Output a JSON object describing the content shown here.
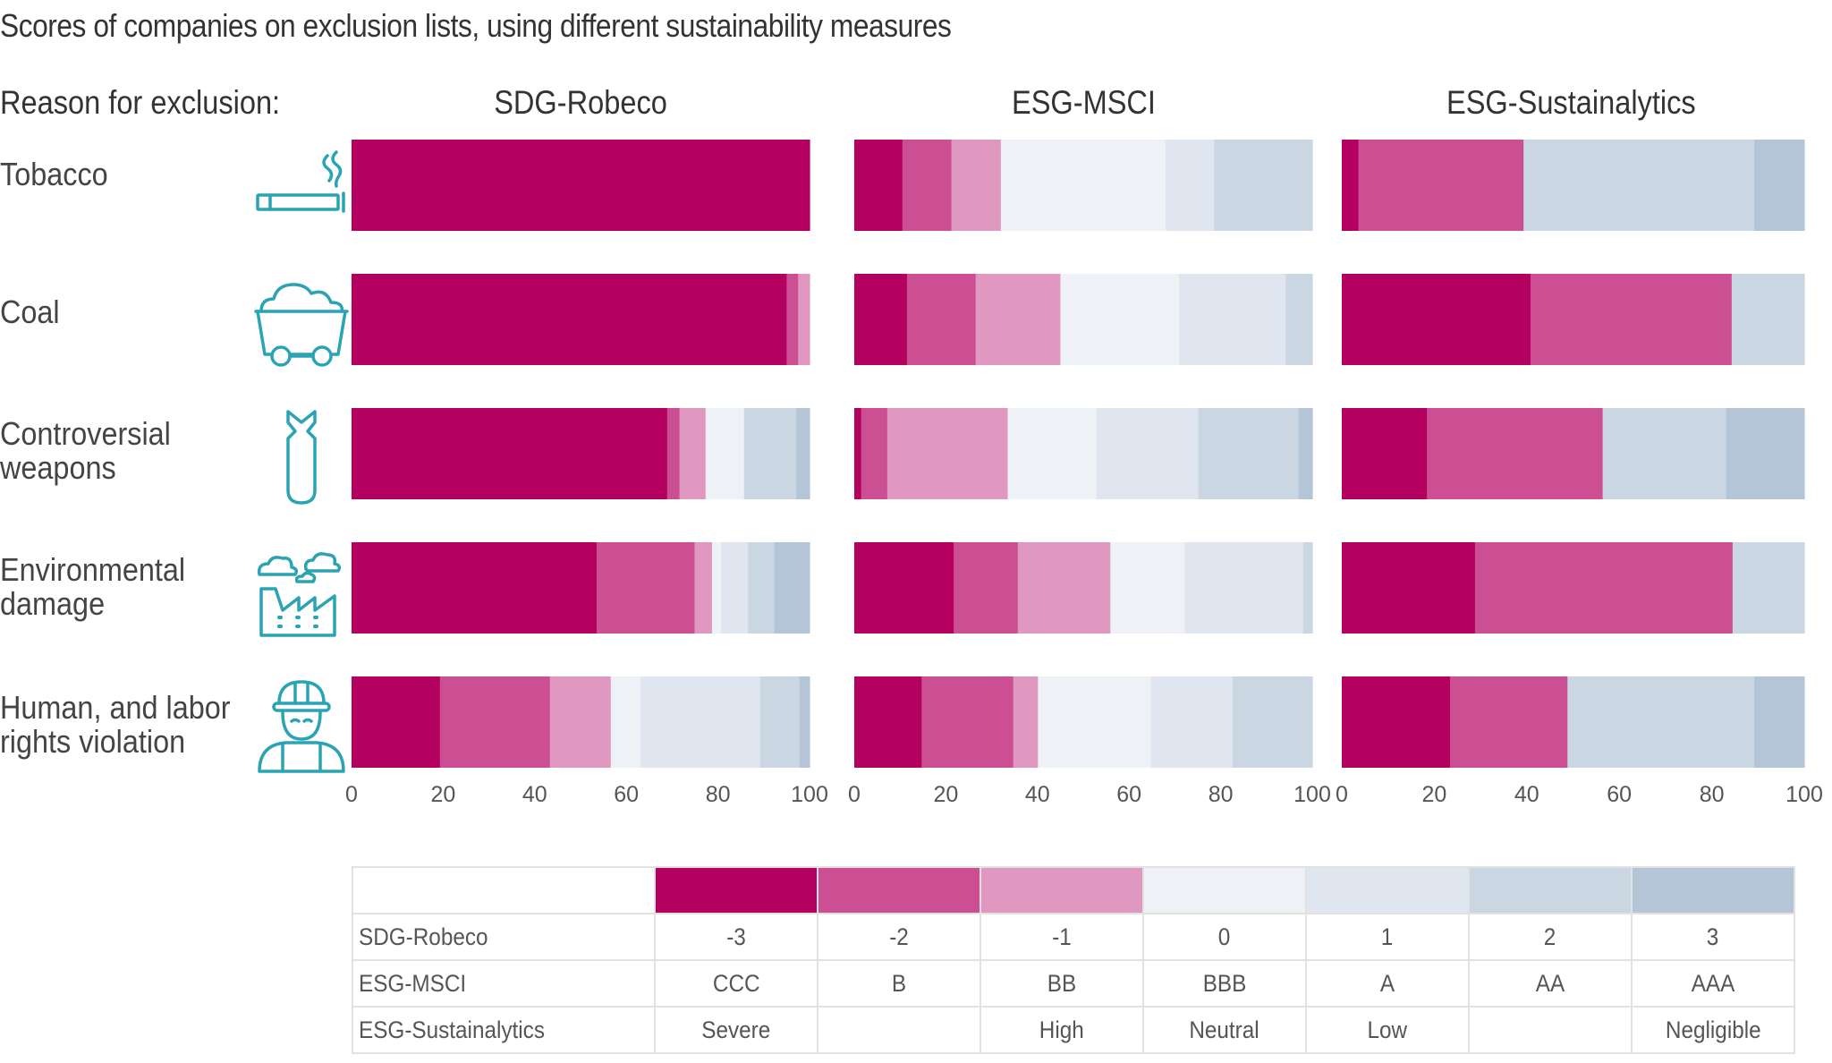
{
  "title": "Scores of companies on exclusion lists, using different sustainability measures",
  "reason_header": "Reason for exclusion:",
  "colors": {
    "m3": "#b4005f",
    "m2": "#cb4f92",
    "m1": "#e097c0",
    "z0": "#eef1f5",
    "p1": "#e0e6ef",
    "p2": "#cad6e2",
    "p3": "#b3c5d6",
    "icon": "#2aa3b3"
  },
  "rows": [
    {
      "label_lines": [
        "Tobacco"
      ],
      "icon": "cigarette-icon"
    },
    {
      "label_lines": [
        "Coal"
      ],
      "icon": "mine-cart-icon"
    },
    {
      "label_lines": [
        "Controversial",
        "weapons"
      ],
      "icon": "bomb-icon"
    },
    {
      "label_lines": [
        "Environmental",
        "damage"
      ],
      "icon": "factory-pollution-icon"
    },
    {
      "label_lines": [
        "Human, and labor",
        "rights violation"
      ],
      "icon": "worker-helmet-icon"
    }
  ],
  "legend": {
    "rows": [
      {
        "name": "SDG-Robeco",
        "values": [
          "-3",
          "-2",
          "-1",
          "0",
          "1",
          "2",
          "3"
        ]
      },
      {
        "name": "ESG-MSCI",
        "values": [
          "CCC",
          "B",
          "BB",
          "BBB",
          "A",
          "AA",
          "AAA"
        ]
      },
      {
        "name": "ESG-Sustainalytics",
        "values": [
          "Severe",
          "",
          "High",
          "Neutral",
          "Low",
          "",
          "Negligible"
        ]
      }
    ]
  },
  "chart_data": {
    "type": "bar",
    "orientation": "horizontal-stacked-100",
    "title": "Scores of companies on exclusion lists, using different sustainability measures",
    "categories": [
      "Tobacco",
      "Coal",
      "Controversial weapons",
      "Environmental damage",
      "Human, and labor rights violation"
    ],
    "score_levels": [
      -3,
      -2,
      -1,
      0,
      1,
      2,
      3
    ],
    "xlabel": "",
    "xlim": [
      0,
      100
    ],
    "xticks": [
      "0",
      "20",
      "40",
      "60",
      "80",
      "100"
    ],
    "grid": false,
    "legend_placement": "bottom (table)",
    "panels": [
      {
        "name": "SDG-Robeco",
        "series": [
          {
            "category": "Tobacco",
            "values": [
              100,
              0,
              0,
              0,
              0,
              0,
              0
            ]
          },
          {
            "category": "Coal",
            "values": [
              95,
              2.5,
              2.5,
              0,
              0,
              0,
              0
            ]
          },
          {
            "category": "Controversial weapons",
            "values": [
              68.9,
              2.7,
              5.7,
              8.4,
              0,
              11.4,
              2.9
            ]
          },
          {
            "category": "Environmental damage",
            "values": [
              53.5,
              21.4,
              3.8,
              2,
              5.9,
              5.7,
              7.7
            ]
          },
          {
            "category": "Human, and labor rights violation",
            "values": [
              19.3,
              24,
              13.3,
              6.5,
              26.1,
              8.6,
              2.2
            ]
          }
        ]
      },
      {
        "name": "ESG-MSCI",
        "series": [
          {
            "category": "Tobacco",
            "values": [
              10.5,
              10.7,
              10.8,
              36,
              10.6,
              21.4,
              0
            ]
          },
          {
            "category": "Coal",
            "values": [
              11.5,
              15,
              18.5,
              25.9,
              23.3,
              5.8,
              0
            ]
          },
          {
            "category": "Controversial weapons",
            "values": [
              1.5,
              5.7,
              26.3,
              19.4,
              22.2,
              21.9,
              3
            ]
          },
          {
            "category": "Environmental damage",
            "values": [
              21.7,
              14,
              20.2,
              16.3,
              25.8,
              2,
              0
            ]
          },
          {
            "category": "Human, and labor rights violation",
            "values": [
              14.7,
              20,
              5.4,
              24.7,
              17.8,
              17.4,
              0
            ]
          }
        ]
      },
      {
        "name": "ESG-Sustainalytics",
        "series": [
          {
            "category": "Tobacco",
            "values": [
              3.6,
              35.7,
              0,
              0,
              0,
              49.9,
              10.8
            ]
          },
          {
            "category": "Coal",
            "values": [
              40.8,
              43.5,
              0,
              0,
              0,
              15.7,
              0
            ]
          },
          {
            "category": "Controversial weapons",
            "values": [
              18.4,
              38,
              0,
              0,
              0,
              26.7,
              16.9
            ]
          },
          {
            "category": "Environmental damage",
            "values": [
              28.8,
              55.7,
              0,
              0,
              0,
              15.5,
              0
            ]
          },
          {
            "category": "Human, and labor rights violation",
            "values": [
              23.4,
              25.4,
              0,
              0,
              0,
              40.4,
              10.8
            ]
          }
        ]
      }
    ]
  }
}
